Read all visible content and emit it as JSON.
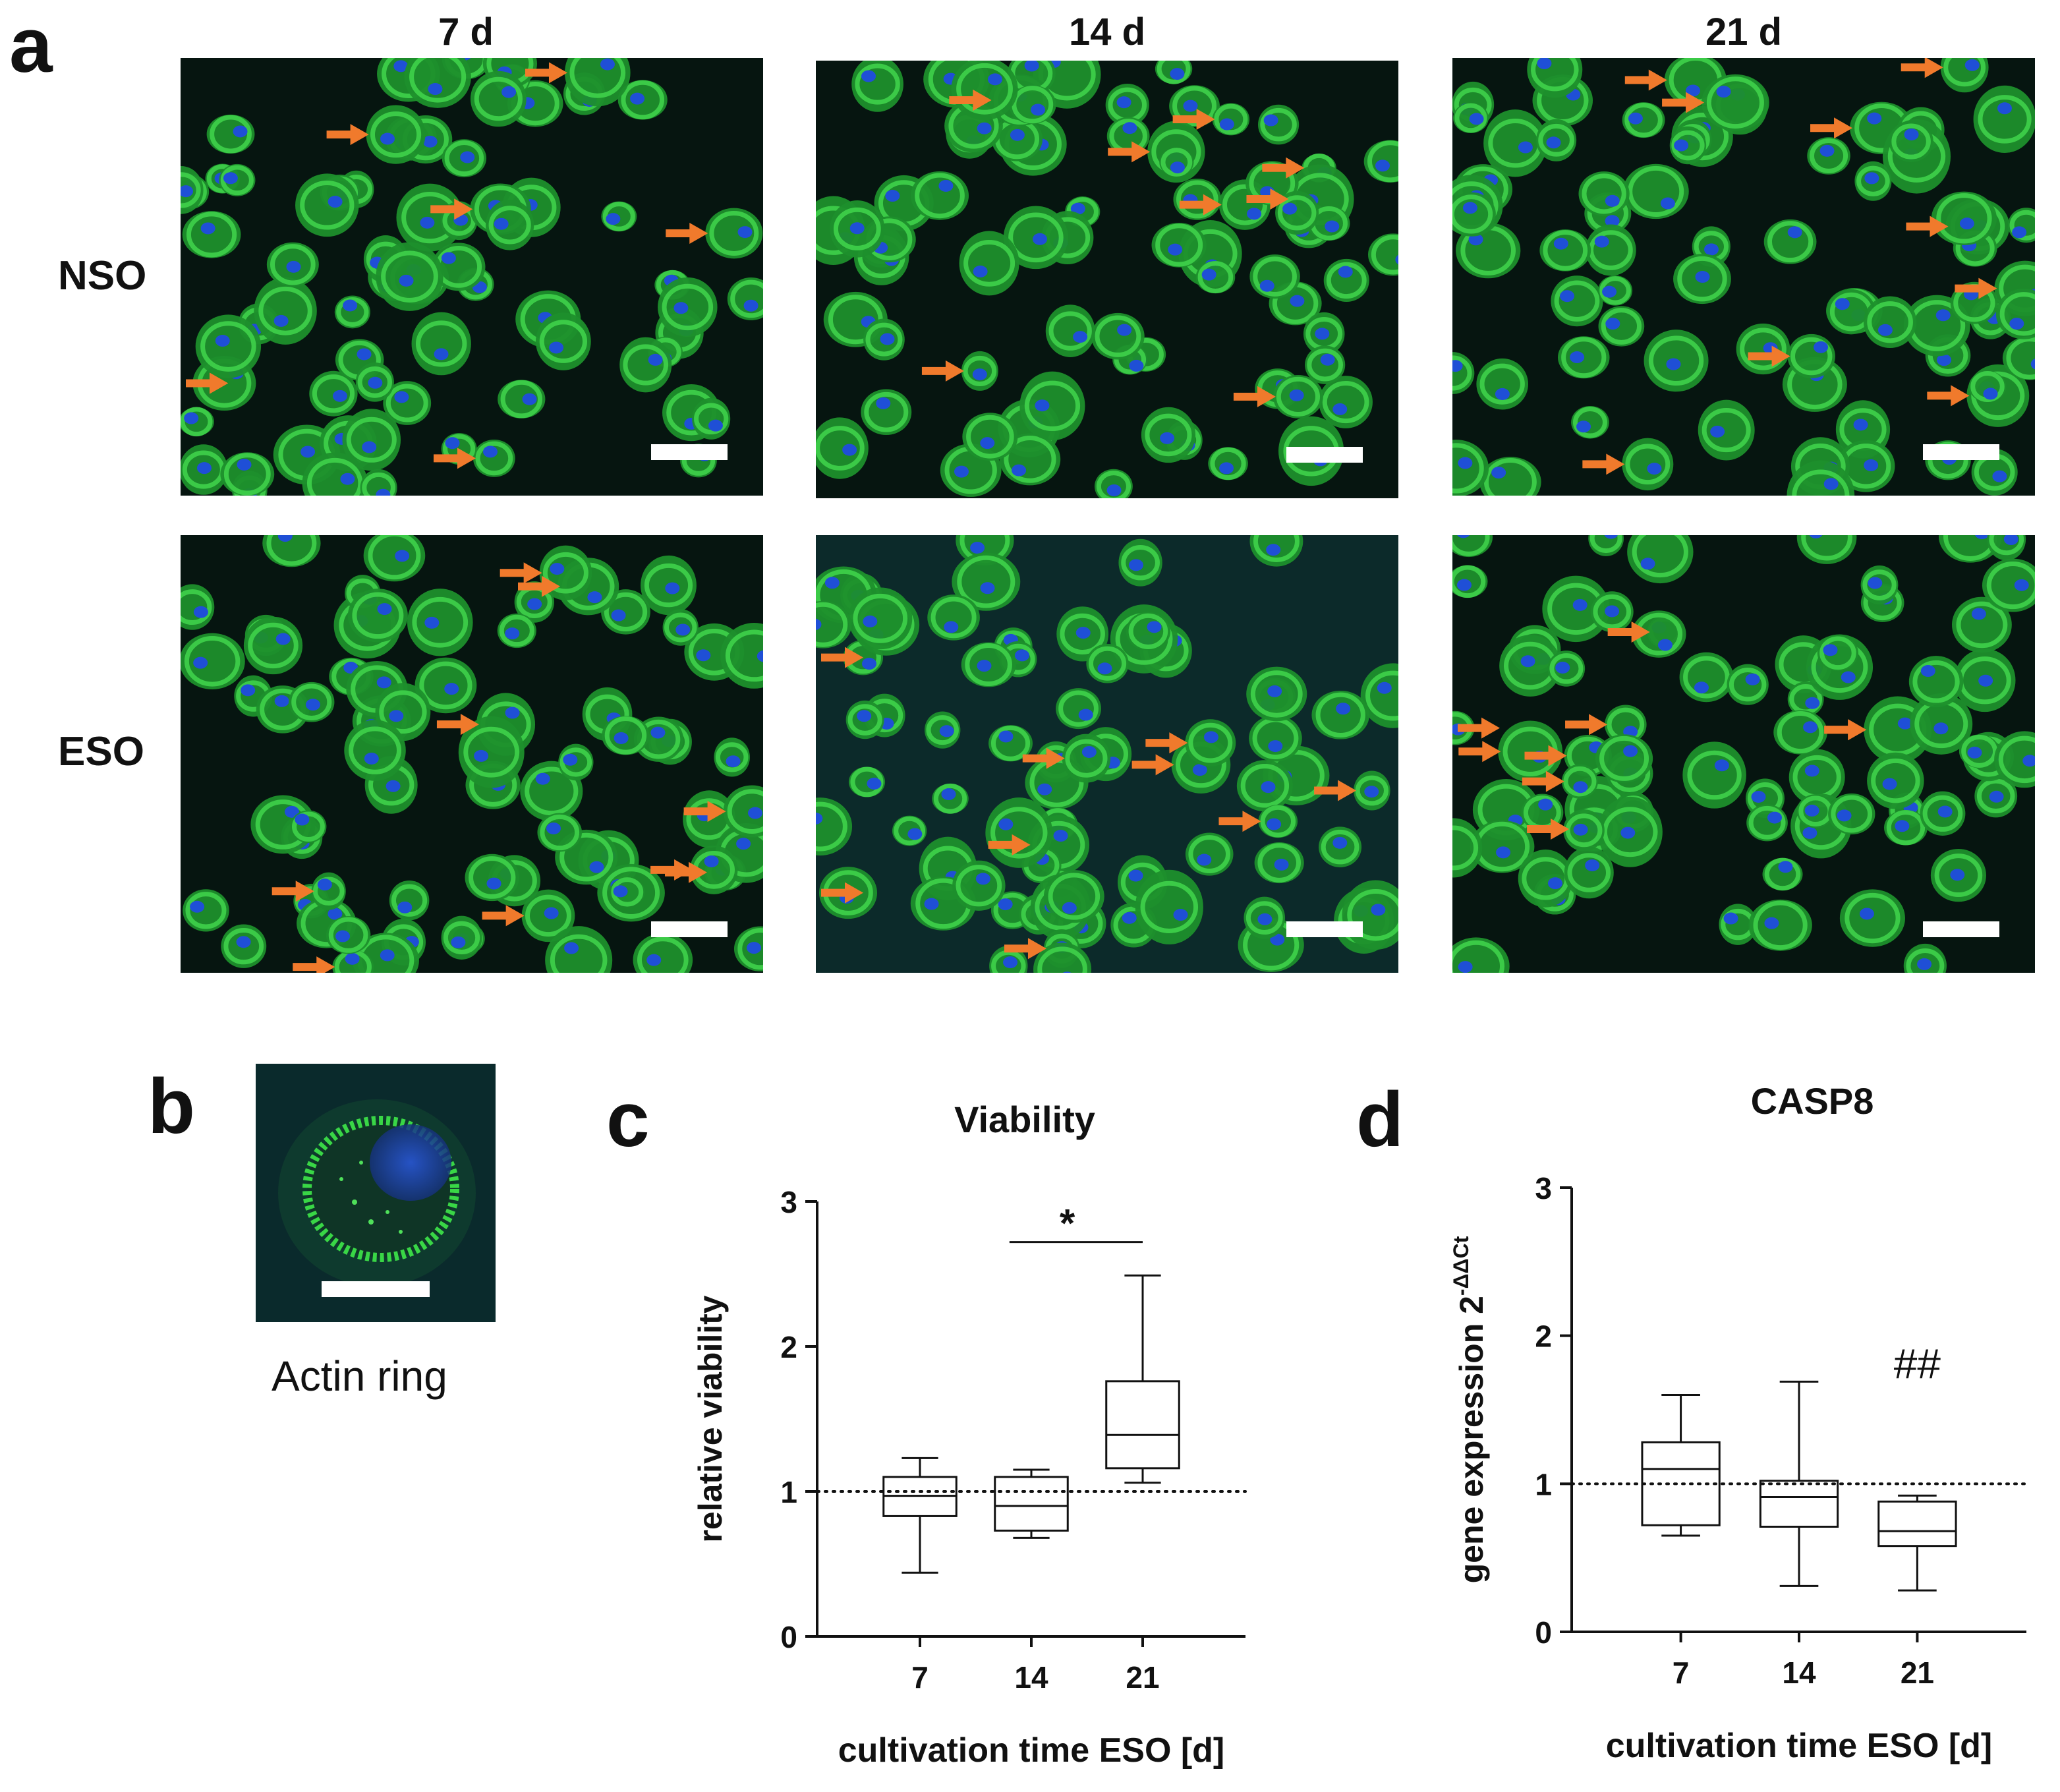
{
  "panels": {
    "a": {
      "letter": "a",
      "columns": [
        "7 d",
        "14 d",
        "21 d"
      ],
      "rows": [
        "NSO",
        "ESO"
      ],
      "image_type": "fluorescence micrographs (actin green, nuclei blue) with orange arrows marking actin rings"
    },
    "b": {
      "letter": "b",
      "caption": "Actin ring"
    },
    "c": {
      "letter": "c"
    },
    "d": {
      "letter": "d"
    }
  },
  "colors": {
    "arrow": "#f07a2c",
    "cell_green": "#3fd24a",
    "nucleus_blue": "#1f4fd6",
    "background_dark": "#061510"
  },
  "chart_data": [
    {
      "type": "box",
      "panel": "c",
      "title": "Viability",
      "xlabel": "cultivation time ESO [d]",
      "ylabel": "relative viability",
      "ylim": [
        0,
        3
      ],
      "yticks": [
        "0",
        "1",
        "2",
        "3"
      ],
      "categories": [
        "7",
        "14",
        "21"
      ],
      "boxes": [
        {
          "min": 0.44,
          "q1": 0.83,
          "median": 0.97,
          "q3": 1.1,
          "max": 1.23
        },
        {
          "min": 0.68,
          "q1": 0.73,
          "median": 0.9,
          "q3": 1.1,
          "max": 1.15
        },
        {
          "min": 1.06,
          "q1": 1.16,
          "median": 1.39,
          "q3": 1.76,
          "max": 2.49
        }
      ],
      "reference_line": 1,
      "significance": {
        "from": "14",
        "to": "21",
        "label": "*",
        "y": 2.72
      }
    },
    {
      "type": "box",
      "panel": "d",
      "title": "CASP8",
      "xlabel": "cultivation time ESO [d]",
      "ylabel": "gene expression 2",
      "ylabel_superscript": "-ΔΔCt",
      "ylim": [
        0,
        3
      ],
      "yticks": [
        "0",
        "1",
        "2",
        "3"
      ],
      "categories": [
        "7",
        "14",
        "21"
      ],
      "boxes": [
        {
          "min": 0.65,
          "q1": 0.72,
          "median": 1.1,
          "q3": 1.28,
          "max": 1.6
        },
        {
          "min": 0.31,
          "q1": 0.71,
          "median": 0.91,
          "q3": 1.02,
          "max": 1.69
        },
        {
          "min": 0.28,
          "q1": 0.58,
          "median": 0.68,
          "q3": 0.88,
          "max": 0.92
        }
      ],
      "reference_line": 1,
      "annotation": {
        "category": "21",
        "label": "##",
        "y": 1.8
      }
    }
  ]
}
